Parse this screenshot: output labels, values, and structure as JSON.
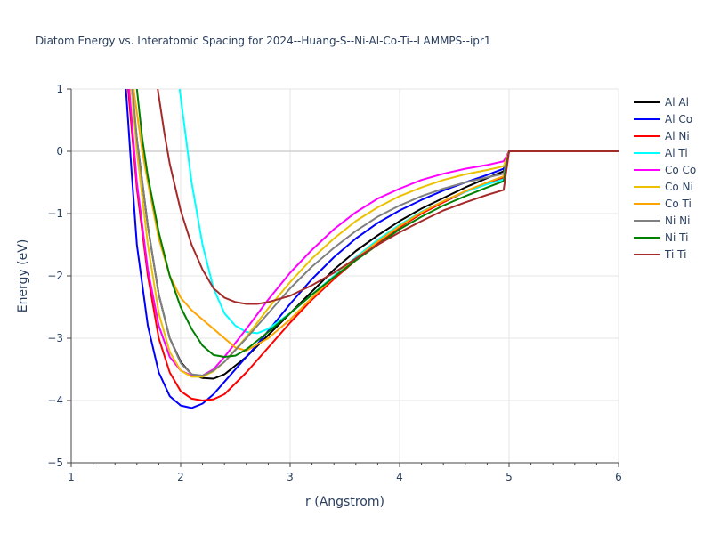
{
  "chart_data": {
    "type": "line",
    "title": "Diatom Energy vs. Interatomic Spacing for 2024--Huang-S--Ni-Al-Co-Ti--LAMMPS--ipr1",
    "xlabel": "r (Angstrom)",
    "ylabel": "Energy (eV)",
    "xlim": [
      1,
      6
    ],
    "ylim": [
      -5,
      1
    ],
    "x_ticks": [
      1,
      2,
      3,
      4,
      5,
      6
    ],
    "y_ticks": [
      -5,
      -4,
      -3,
      -2,
      -1,
      0,
      1
    ],
    "x_tick_labels": [
      "1",
      "2",
      "3",
      "4",
      "5",
      "6"
    ],
    "y_tick_labels": [
      "−5",
      "−4",
      "−3",
      "−2",
      "−1",
      "0",
      "1"
    ],
    "grid": true,
    "legend_position": "right",
    "series": [
      {
        "name": "Al Al",
        "color": "#000000",
        "points": [
          [
            1.55,
            1.0
          ],
          [
            1.6,
            0.2
          ],
          [
            1.7,
            -1.2
          ],
          [
            1.8,
            -2.3
          ],
          [
            1.9,
            -3.0
          ],
          [
            2.0,
            -3.38
          ],
          [
            2.1,
            -3.58
          ],
          [
            2.2,
            -3.64
          ],
          [
            2.3,
            -3.65
          ],
          [
            2.4,
            -3.58
          ],
          [
            2.6,
            -3.3
          ],
          [
            2.8,
            -2.95
          ],
          [
            3.0,
            -2.6
          ],
          [
            3.2,
            -2.25
          ],
          [
            3.4,
            -1.9
          ],
          [
            3.6,
            -1.6
          ],
          [
            3.8,
            -1.35
          ],
          [
            4.0,
            -1.12
          ],
          [
            4.2,
            -0.92
          ],
          [
            4.4,
            -0.75
          ],
          [
            4.6,
            -0.58
          ],
          [
            4.8,
            -0.43
          ],
          [
            4.95,
            -0.32
          ],
          [
            5.0,
            0.0
          ],
          [
            6.0,
            0.0
          ]
        ]
      },
      {
        "name": "Al Co",
        "color": "#0000ff",
        "points": [
          [
            1.5,
            1.0
          ],
          [
            1.55,
            -0.3
          ],
          [
            1.6,
            -1.5
          ],
          [
            1.7,
            -2.8
          ],
          [
            1.8,
            -3.55
          ],
          [
            1.9,
            -3.93
          ],
          [
            2.0,
            -4.08
          ],
          [
            2.1,
            -4.12
          ],
          [
            2.2,
            -4.05
          ],
          [
            2.3,
            -3.9
          ],
          [
            2.5,
            -3.5
          ],
          [
            2.7,
            -3.1
          ],
          [
            3.0,
            -2.45
          ],
          [
            3.2,
            -2.05
          ],
          [
            3.4,
            -1.7
          ],
          [
            3.6,
            -1.4
          ],
          [
            3.8,
            -1.15
          ],
          [
            4.0,
            -0.95
          ],
          [
            4.2,
            -0.78
          ],
          [
            4.4,
            -0.63
          ],
          [
            4.6,
            -0.5
          ],
          [
            4.8,
            -0.38
          ],
          [
            4.95,
            -0.28
          ],
          [
            5.0,
            0.0
          ],
          [
            6.0,
            0.0
          ]
        ]
      },
      {
        "name": "Al Ni",
        "color": "#ff0000",
        "points": [
          [
            1.52,
            1.0
          ],
          [
            1.6,
            -0.6
          ],
          [
            1.7,
            -2.0
          ],
          [
            1.8,
            -3.0
          ],
          [
            1.9,
            -3.55
          ],
          [
            2.0,
            -3.85
          ],
          [
            2.1,
            -3.97
          ],
          [
            2.2,
            -4.0
          ],
          [
            2.3,
            -3.98
          ],
          [
            2.4,
            -3.9
          ],
          [
            2.6,
            -3.55
          ],
          [
            2.8,
            -3.15
          ],
          [
            3.0,
            -2.75
          ],
          [
            3.2,
            -2.38
          ],
          [
            3.4,
            -2.05
          ],
          [
            3.6,
            -1.75
          ],
          [
            3.8,
            -1.48
          ],
          [
            4.0,
            -1.22
          ],
          [
            4.2,
            -1.0
          ],
          [
            4.4,
            -0.82
          ],
          [
            4.6,
            -0.65
          ],
          [
            4.8,
            -0.52
          ],
          [
            4.95,
            -0.42
          ],
          [
            5.0,
            0.0
          ],
          [
            6.0,
            0.0
          ]
        ]
      },
      {
        "name": "Al Ti",
        "color": "#00ffff",
        "points": [
          [
            1.99,
            1.0
          ],
          [
            2.05,
            0.2
          ],
          [
            2.1,
            -0.5
          ],
          [
            2.2,
            -1.5
          ],
          [
            2.3,
            -2.2
          ],
          [
            2.4,
            -2.6
          ],
          [
            2.5,
            -2.8
          ],
          [
            2.6,
            -2.9
          ],
          [
            2.7,
            -2.92
          ],
          [
            2.8,
            -2.85
          ],
          [
            3.0,
            -2.6
          ],
          [
            3.2,
            -2.3
          ],
          [
            3.4,
            -2.0
          ],
          [
            3.6,
            -1.7
          ],
          [
            3.8,
            -1.42
          ],
          [
            4.0,
            -1.18
          ],
          [
            4.2,
            -0.97
          ],
          [
            4.4,
            -0.8
          ],
          [
            4.6,
            -0.65
          ],
          [
            4.8,
            -0.53
          ],
          [
            4.95,
            -0.45
          ],
          [
            5.0,
            0.0
          ],
          [
            6.0,
            0.0
          ]
        ]
      },
      {
        "name": "Co Co",
        "color": "#ff00ff",
        "points": [
          [
            1.53,
            1.0
          ],
          [
            1.6,
            -0.5
          ],
          [
            1.7,
            -1.9
          ],
          [
            1.8,
            -2.8
          ],
          [
            1.9,
            -3.3
          ],
          [
            2.0,
            -3.52
          ],
          [
            2.1,
            -3.6
          ],
          [
            2.2,
            -3.6
          ],
          [
            2.3,
            -3.5
          ],
          [
            2.4,
            -3.3
          ],
          [
            2.6,
            -2.85
          ],
          [
            2.8,
            -2.38
          ],
          [
            3.0,
            -1.95
          ],
          [
            3.2,
            -1.58
          ],
          [
            3.4,
            -1.25
          ],
          [
            3.6,
            -0.98
          ],
          [
            3.8,
            -0.76
          ],
          [
            4.0,
            -0.6
          ],
          [
            4.2,
            -0.46
          ],
          [
            4.4,
            -0.36
          ],
          [
            4.6,
            -0.28
          ],
          [
            4.8,
            -0.22
          ],
          [
            4.95,
            -0.16
          ],
          [
            5.0,
            0.0
          ],
          [
            6.0,
            0.0
          ]
        ]
      },
      {
        "name": "Co Ni",
        "color": "#ecc200",
        "points": [
          [
            1.55,
            1.0
          ],
          [
            1.6,
            0.0
          ],
          [
            1.7,
            -1.5
          ],
          [
            1.8,
            -2.6
          ],
          [
            1.9,
            -3.22
          ],
          [
            2.0,
            -3.52
          ],
          [
            2.1,
            -3.62
          ],
          [
            2.2,
            -3.62
          ],
          [
            2.3,
            -3.53
          ],
          [
            2.4,
            -3.38
          ],
          [
            2.6,
            -2.98
          ],
          [
            2.8,
            -2.52
          ],
          [
            3.0,
            -2.1
          ],
          [
            3.2,
            -1.72
          ],
          [
            3.4,
            -1.4
          ],
          [
            3.6,
            -1.12
          ],
          [
            3.8,
            -0.9
          ],
          [
            4.0,
            -0.72
          ],
          [
            4.2,
            -0.58
          ],
          [
            4.4,
            -0.46
          ],
          [
            4.6,
            -0.37
          ],
          [
            4.8,
            -0.3
          ],
          [
            4.95,
            -0.24
          ],
          [
            5.0,
            0.0
          ],
          [
            6.0,
            0.0
          ]
        ]
      },
      {
        "name": "Co Ti",
        "color": "#ffa500",
        "points": [
          [
            1.57,
            1.0
          ],
          [
            1.65,
            0.0
          ],
          [
            1.7,
            -0.5
          ],
          [
            1.8,
            -1.4
          ],
          [
            1.9,
            -2.0
          ],
          [
            2.0,
            -2.35
          ],
          [
            2.1,
            -2.55
          ],
          [
            2.2,
            -2.7
          ],
          [
            2.3,
            -2.85
          ],
          [
            2.4,
            -3.0
          ],
          [
            2.5,
            -3.15
          ],
          [
            2.6,
            -3.2
          ],
          [
            2.8,
            -3.0
          ],
          [
            3.0,
            -2.7
          ],
          [
            3.2,
            -2.35
          ],
          [
            3.4,
            -2.02
          ],
          [
            3.6,
            -1.72
          ],
          [
            3.8,
            -1.45
          ],
          [
            4.0,
            -1.2
          ],
          [
            4.2,
            -0.98
          ],
          [
            4.4,
            -0.8
          ],
          [
            4.6,
            -0.64
          ],
          [
            4.8,
            -0.5
          ],
          [
            4.95,
            -0.4
          ],
          [
            5.0,
            0.0
          ],
          [
            6.0,
            0.0
          ]
        ]
      },
      {
        "name": "Ni Ni",
        "color": "#808080",
        "points": [
          [
            1.56,
            1.0
          ],
          [
            1.6,
            0.2
          ],
          [
            1.7,
            -1.2
          ],
          [
            1.8,
            -2.3
          ],
          [
            1.9,
            -3.0
          ],
          [
            2.0,
            -3.4
          ],
          [
            2.1,
            -3.58
          ],
          [
            2.2,
            -3.6
          ],
          [
            2.3,
            -3.52
          ],
          [
            2.4,
            -3.38
          ],
          [
            2.6,
            -3.0
          ],
          [
            2.8,
            -2.6
          ],
          [
            3.0,
            -2.2
          ],
          [
            3.2,
            -1.85
          ],
          [
            3.4,
            -1.55
          ],
          [
            3.6,
            -1.28
          ],
          [
            3.8,
            -1.05
          ],
          [
            4.0,
            -0.87
          ],
          [
            4.2,
            -0.72
          ],
          [
            4.4,
            -0.6
          ],
          [
            4.6,
            -0.5
          ],
          [
            4.8,
            -0.42
          ],
          [
            4.95,
            -0.36
          ],
          [
            5.0,
            0.0
          ],
          [
            6.0,
            0.0
          ]
        ]
      },
      {
        "name": "Ni Ti",
        "color": "#008000",
        "points": [
          [
            1.6,
            1.0
          ],
          [
            1.65,
            0.2
          ],
          [
            1.7,
            -0.4
          ],
          [
            1.8,
            -1.3
          ],
          [
            1.9,
            -2.0
          ],
          [
            2.0,
            -2.5
          ],
          [
            2.1,
            -2.85
          ],
          [
            2.2,
            -3.12
          ],
          [
            2.3,
            -3.27
          ],
          [
            2.4,
            -3.3
          ],
          [
            2.5,
            -3.28
          ],
          [
            2.6,
            -3.18
          ],
          [
            2.8,
            -2.9
          ],
          [
            3.0,
            -2.6
          ],
          [
            3.2,
            -2.3
          ],
          [
            3.4,
            -2.02
          ],
          [
            3.6,
            -1.75
          ],
          [
            3.8,
            -1.5
          ],
          [
            4.0,
            -1.25
          ],
          [
            4.2,
            -1.05
          ],
          [
            4.4,
            -0.87
          ],
          [
            4.6,
            -0.72
          ],
          [
            4.8,
            -0.58
          ],
          [
            4.95,
            -0.48
          ],
          [
            5.0,
            0.0
          ],
          [
            6.0,
            0.0
          ]
        ]
      },
      {
        "name": "Ti Ti",
        "color": "#a52a2a",
        "points": [
          [
            1.79,
            1.0
          ],
          [
            1.85,
            0.3
          ],
          [
            1.9,
            -0.2
          ],
          [
            2.0,
            -0.95
          ],
          [
            2.1,
            -1.5
          ],
          [
            2.2,
            -1.9
          ],
          [
            2.3,
            -2.2
          ],
          [
            2.4,
            -2.35
          ],
          [
            2.5,
            -2.42
          ],
          [
            2.6,
            -2.45
          ],
          [
            2.7,
            -2.45
          ],
          [
            2.8,
            -2.42
          ],
          [
            3.0,
            -2.32
          ],
          [
            3.2,
            -2.15
          ],
          [
            3.4,
            -1.95
          ],
          [
            3.6,
            -1.72
          ],
          [
            3.8,
            -1.5
          ],
          [
            4.0,
            -1.3
          ],
          [
            4.2,
            -1.12
          ],
          [
            4.4,
            -0.95
          ],
          [
            4.6,
            -0.82
          ],
          [
            4.8,
            -0.7
          ],
          [
            4.95,
            -0.62
          ],
          [
            5.0,
            0.0
          ],
          [
            6.0,
            0.0
          ]
        ]
      }
    ]
  }
}
